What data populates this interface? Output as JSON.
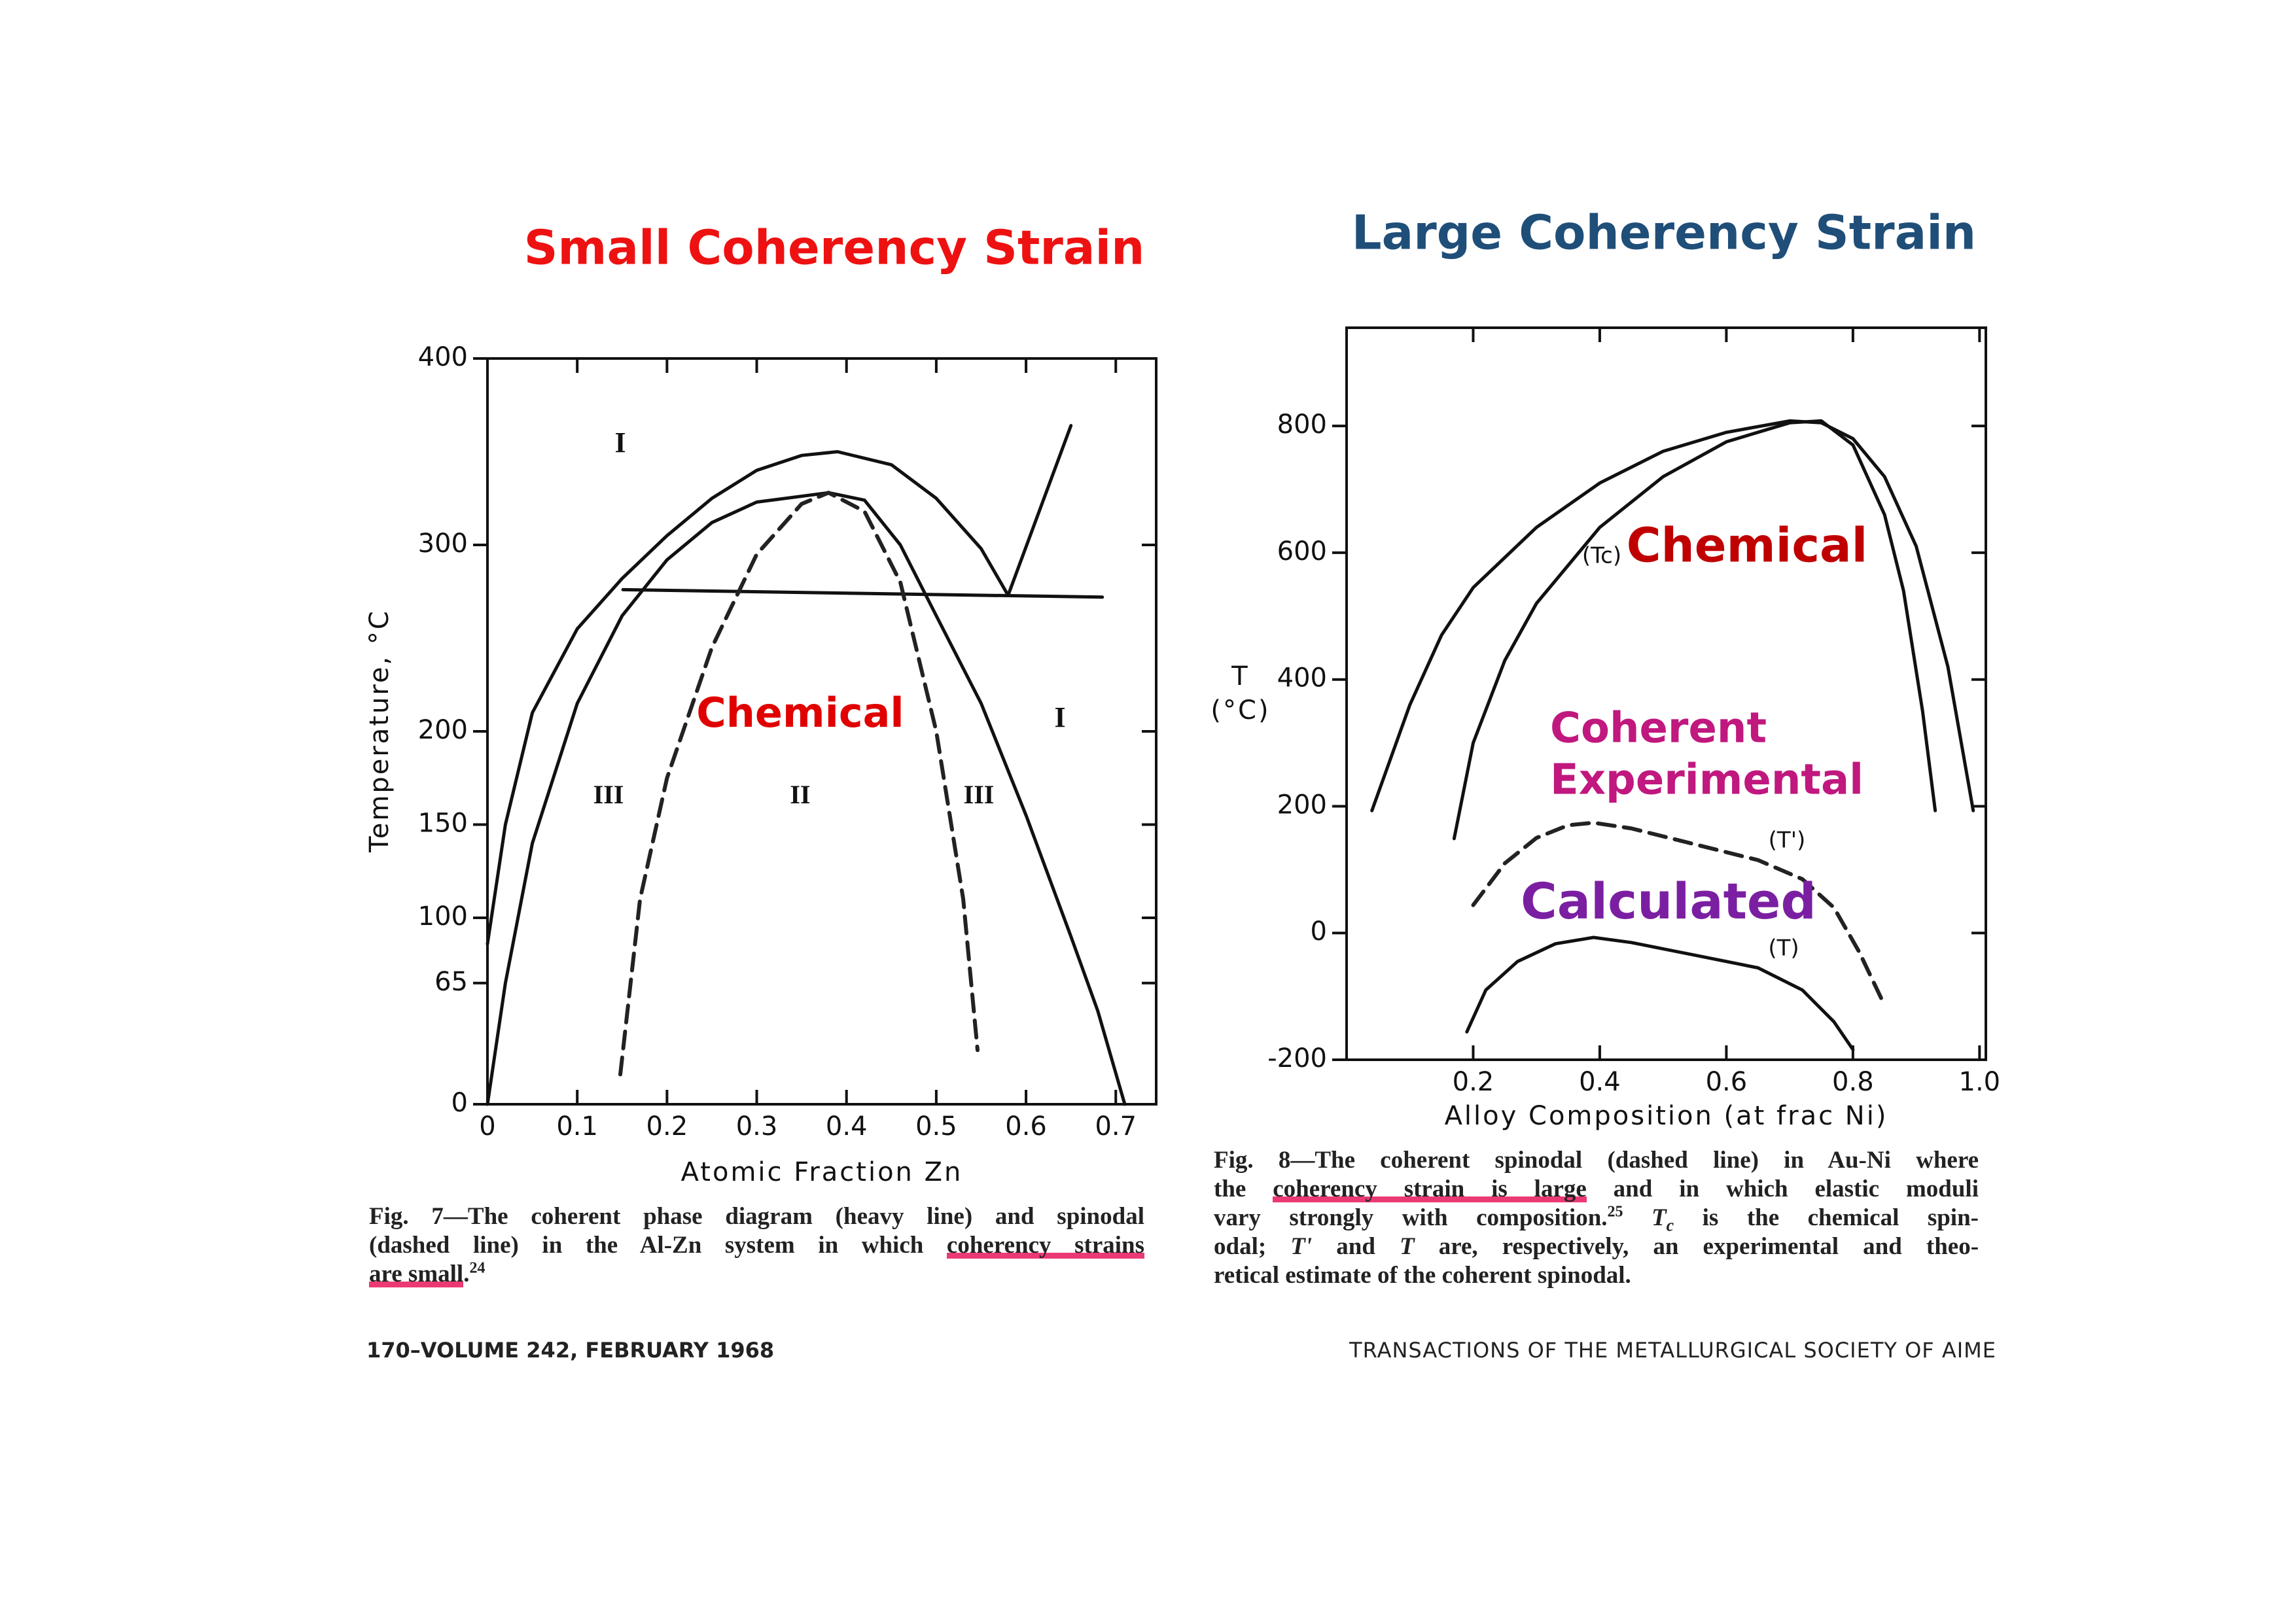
{
  "chart_data": [
    {
      "type": "line",
      "title": "Small Coherency Strain",
      "title_color": "#ee1111",
      "xlabel": "Atomic Fraction Zn",
      "ylabel": [
        "Temperature, °C"
      ],
      "xlim": [
        0,
        0.745
      ],
      "ylim": [
        0,
        400
      ],
      "xticks": [
        0,
        0.1,
        0.2,
        0.3,
        0.4,
        0.5,
        0.6,
        0.7
      ],
      "yticks": [
        0,
        65,
        100,
        150,
        200,
        300,
        400
      ],
      "series": [
        {
          "color": "#111111",
          "dashed": false,
          "x": [
            0,
            0.02,
            0.05,
            0.1,
            0.15,
            0.2,
            0.25,
            0.3,
            0.35,
            0.39,
            0.45,
            0.5,
            0.55,
            0.58
          ],
          "values": [
            86,
            150,
            210,
            255,
            282,
            305,
            325,
            340,
            348,
            350,
            343,
            325,
            298,
            273
          ]
        },
        {
          "color": "#111111",
          "dashed": false,
          "x": [
            0.58,
            0.65
          ],
          "values": [
            273,
            364
          ]
        },
        {
          "color": "#111111",
          "dashed": false,
          "x": [
            0.151,
            0.685
          ],
          "values": [
            276,
            272
          ]
        },
        {
          "color": "#111111",
          "dashed": false,
          "x": [
            0,
            0.02,
            0.05,
            0.1,
            0.15,
            0.2,
            0.25,
            0.3,
            0.38,
            0.42,
            0.46,
            0.5,
            0.55,
            0.6,
            0.65,
            0.68,
            0.71
          ],
          "values": [
            0,
            65,
            140,
            215,
            262,
            292,
            312,
            323,
            328,
            324,
            300,
            262,
            215,
            155,
            90,
            50,
            0
          ]
        },
        {
          "color": "#222222",
          "dashed": true,
          "x": [
            0.148,
            0.17,
            0.2,
            0.25,
            0.3,
            0.35,
            0.38,
            0.42,
            0.46,
            0.5,
            0.53,
            0.546
          ],
          "values": [
            16,
            110,
            175,
            245,
            295,
            322,
            328,
            318,
            280,
            200,
            110,
            29
          ]
        }
      ],
      "annotations": [
        {
          "text": "I"
        },
        {
          "text": "I"
        },
        {
          "text": "III"
        },
        {
          "text": "II"
        },
        {
          "text": "III"
        },
        {
          "text": "Chemical",
          "color": "#e00000"
        }
      ]
    },
    {
      "type": "line",
      "title": "Large Coherency Strain",
      "title_color": "#1f4e79",
      "xlabel": "Alloy Composition (at frac Ni)",
      "ylabel": [
        "T",
        "(°C)"
      ],
      "xlim": [
        0,
        1.01
      ],
      "ylim": [
        -200,
        955
      ],
      "xticks": [
        0.2,
        0.4,
        0.6,
        0.8,
        {
          "value": 1,
          "label": "1.0"
        }
      ],
      "yticks": [
        -200,
        0,
        200,
        400,
        600,
        800
      ],
      "series": [
        {
          "color": "#111111",
          "dashed": false,
          "x": [
            0.04,
            0.1,
            0.15,
            0.2,
            0.3,
            0.4,
            0.5,
            0.6,
            0.7,
            0.75,
            0.8,
            0.85,
            0.9,
            0.95,
            0.98,
            0.99
          ],
          "values": [
            193,
            360,
            470,
            545,
            640,
            710,
            760,
            790,
            808,
            805,
            780,
            720,
            610,
            420,
            250,
            193
          ]
        },
        {
          "color": "#111111",
          "dashed": false,
          "x": [
            0.17,
            0.2,
            0.25,
            0.3,
            0.4,
            0.5,
            0.6,
            0.7,
            0.75,
            0.8,
            0.85,
            0.88,
            0.91,
            0.93
          ],
          "values": [
            149,
            300,
            430,
            520,
            640,
            720,
            775,
            805,
            808,
            770,
            660,
            540,
            350,
            193
          ]
        },
        {
          "color": "#222222",
          "dashed": true,
          "x": [
            0.2,
            0.25,
            0.3,
            0.35,
            0.39,
            0.45,
            0.55,
            0.65,
            0.72,
            0.77,
            0.81,
            0.85
          ],
          "values": [
            44,
            110,
            150,
            170,
            174,
            165,
            140,
            115,
            85,
            40,
            -30,
            -114
          ]
        },
        {
          "color": "#111111",
          "dashed": false,
          "x": [
            0.19,
            0.22,
            0.27,
            0.33,
            0.39,
            0.45,
            0.55,
            0.65,
            0.72,
            0.77,
            0.8
          ],
          "values": [
            -156,
            -90,
            -45,
            -17,
            -7,
            -15,
            -35,
            -55,
            -90,
            -140,
            -184
          ]
        }
      ],
      "annotations": [
        {
          "text": "(Tc)"
        },
        {
          "text": "(T')"
        },
        {
          "text": "(T)"
        },
        {
          "text": "Chemical",
          "color": "#c00000"
        },
        {
          "text": "Coherent",
          "color": "#c0187e"
        },
        {
          "text": "Experimental",
          "color": "#c0187e"
        },
        {
          "text": "Calculated",
          "color": "#7b1fa2"
        }
      ]
    }
  ],
  "captions": [
    {
      "lines": [
        [
          {
            "text": "Fig. 7—The coherent phase diagram (heavy line) and spinodal"
          }
        ],
        [
          {
            "text": "(dashed line) in the Al-Zn system in which "
          },
          {
            "text": "coherency strains",
            "style": "mark"
          }
        ],
        [
          {
            "text": "are small",
            "style": "mark"
          },
          {
            "text": "."
          },
          {
            "text": "24",
            "style": "sup"
          }
        ]
      ]
    },
    {
      "lines": [
        [
          {
            "text": "Fig. 8—The coherent spinodal (dashed line) in Au-Ni where"
          }
        ],
        [
          {
            "text": "the "
          },
          {
            "text": "coherency strain is large",
            "style": "mark"
          },
          {
            "text": " and in which elastic moduli"
          }
        ],
        [
          {
            "text": "vary strongly with composition."
          },
          {
            "text": "25",
            "style": "sup"
          },
          {
            "text": " T",
            "style": "italic"
          },
          {
            "text": "c",
            "style": "sub"
          },
          {
            "text": " is the chemical spin-"
          }
        ],
        [
          {
            "text": "odal; "
          },
          {
            "text": "T'",
            "style": "italic"
          },
          {
            "text": " and "
          },
          {
            "text": "T",
            "style": "italic"
          },
          {
            "text": " are, respectively, an experimental and theo-"
          }
        ],
        [
          {
            "text": "retical estimate of the coherent spinodal."
          }
        ]
      ]
    }
  ],
  "footer": {
    "left": "170–VOLUME 242, FEBRUARY 1968",
    "right": "TRANSACTIONS OF THE METALLURGICAL SOCIETY OF AIME"
  }
}
